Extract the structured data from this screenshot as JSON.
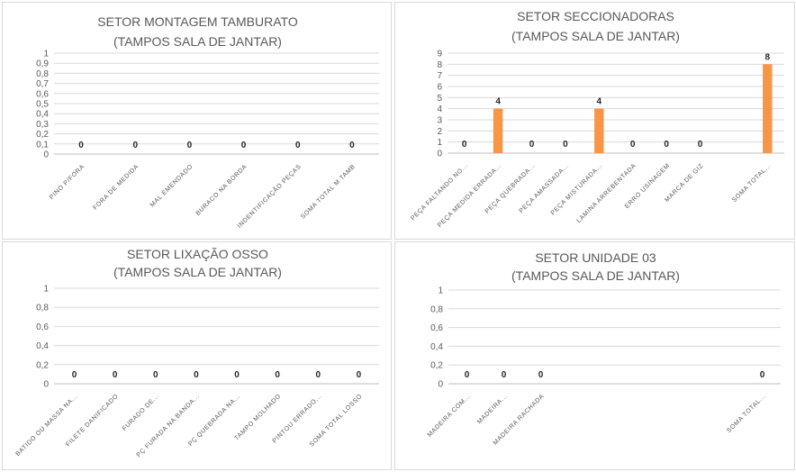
{
  "chart_data": [
    {
      "type": "bar",
      "title": [
        "SETOR  MONTAGEM TAMBURATO",
        "(TAMPOS SALA DE JANTAR)"
      ],
      "categories": [
        "PINO P/FORA",
        "FORA DE MEDIDA",
        "MAL EMENDADO",
        "BURACO NA BORDA",
        "INDENTIFICAÇÃO PEÇAS",
        "SOMA TOTAL M TAMB"
      ],
      "values": [
        0,
        0,
        0,
        0,
        0,
        0
      ],
      "y_ticks": [
        "0",
        "0,1",
        "0,2",
        "0,3",
        "0,4",
        "0,5",
        "0,6",
        "0,7",
        "0,8",
        "0,9",
        "1"
      ],
      "ylim": [
        0,
        1
      ],
      "grid": true,
      "bar_color": "#f79646",
      "data_labels": true
    },
    {
      "type": "bar",
      "title": [
        "SETOR SECCIONADORAS",
        "(TAMPOS SALA DE JANTAR)"
      ],
      "categories": [
        "PEÇA FALTANDO NO...",
        "PEÇA MEDIDA ERRADA...",
        "PEÇA QUEBRADA...",
        "PEÇA AMASSADA...",
        "PEÇA MISTURADA...",
        "LAMINA ARREBENTADA",
        "ERRO USINAGEM",
        "MARCA DE GIZ",
        "",
        "SOMA TOTAL..."
      ],
      "values": [
        0,
        4,
        0,
        0,
        4,
        0,
        0,
        0,
        null,
        8
      ],
      "y_ticks": [
        "0",
        "1",
        "2",
        "3",
        "4",
        "5",
        "6",
        "7",
        "8",
        "9"
      ],
      "ylim": [
        0,
        9
      ],
      "grid": true,
      "bar_color": "#f79646",
      "data_labels": true
    },
    {
      "type": "bar",
      "title": [
        "SETOR LIXAÇÃO OSSO",
        "(TAMPOS SALA DE JANTAR)"
      ],
      "categories": [
        "BATIDO OU MASSA NA...",
        "FILETE DANIFICADO",
        "FURADO DE...",
        "PÇ FURADA NA BANDA...",
        "PÇ QUEBRADA NA...",
        "TAMPO MOLHADO",
        "PINTOU ERRADO...",
        "SOMA TOTAL LOSSO"
      ],
      "values": [
        0,
        0,
        0,
        0,
        0,
        0,
        0,
        0
      ],
      "y_ticks": [
        "0",
        "0,2",
        "0,4",
        "0,6",
        "0,8",
        "1"
      ],
      "ylim": [
        0,
        1
      ],
      "grid": true,
      "bar_color": "#f79646",
      "data_labels": true
    },
    {
      "type": "bar",
      "title": [
        "SETOR UNIDADE 03",
        "(TAMPOS SALA DE JANTAR)"
      ],
      "categories": [
        "MADEIRA COM...",
        "MADEIRA...",
        "MADEIRA RACHADA",
        "",
        "",
        "",
        "",
        "",
        "SOMA TOTAL..."
      ],
      "values": [
        0,
        0,
        0,
        null,
        null,
        null,
        null,
        null,
        0
      ],
      "y_ticks": [
        "0",
        "0,2",
        "0,4",
        "0,6",
        "0,8",
        "1"
      ],
      "ylim": [
        0,
        1
      ],
      "grid": true,
      "bar_color": "#f79646",
      "data_labels": true
    }
  ]
}
